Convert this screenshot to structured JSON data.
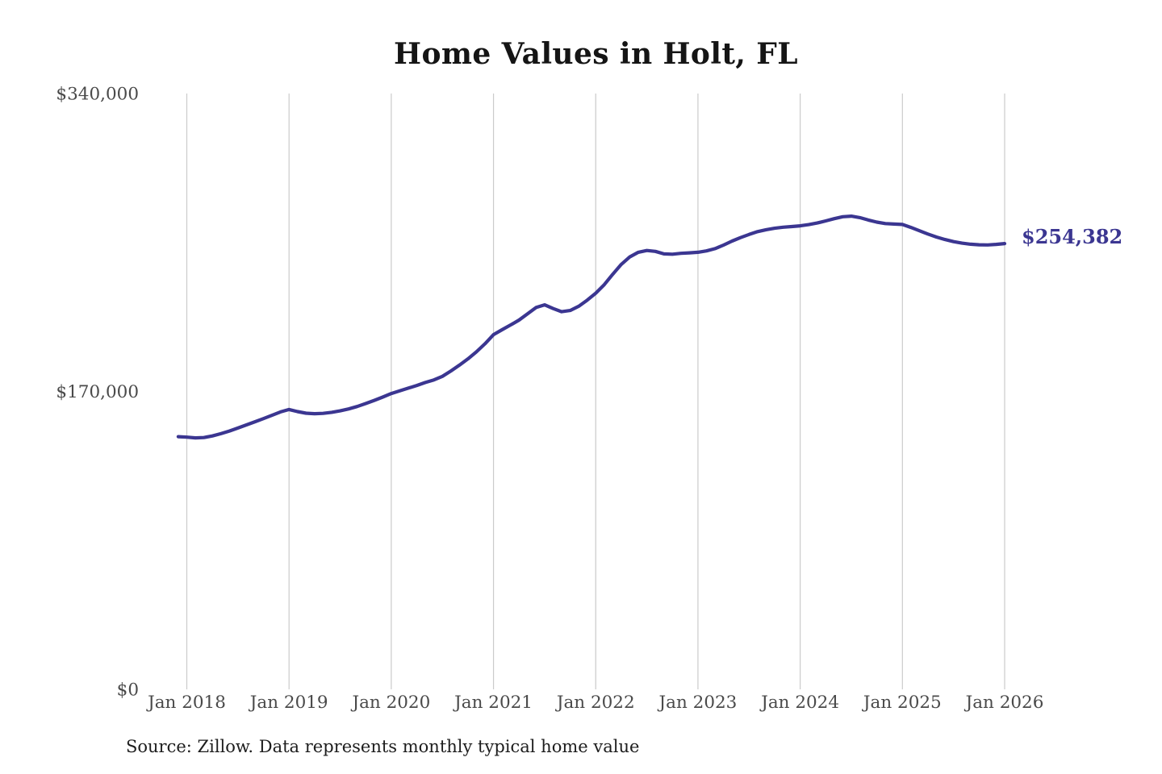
{
  "colors": {
    "line": "#3b3691",
    "grid": "#cbcbcb",
    "axis_text": "#4a4a4a",
    "title_text": "#151515",
    "end_label_text": "#3b3691",
    "background": "#ffffff"
  },
  "chart_data": {
    "type": "line",
    "title": "Home Values in Holt, FL",
    "source_note": "Source: Zillow. Data represents monthly typical home value",
    "last_value_label": "$254,382",
    "xlabel": "",
    "ylabel": "",
    "ylim": [
      0,
      340000
    ],
    "y_ticks": [
      0,
      170000,
      340000
    ],
    "y_tick_labels": [
      "$0",
      "$170,000",
      "$340,000"
    ],
    "x_tick_labels": [
      "Jan 2018",
      "Jan 2019",
      "Jan 2020",
      "Jan 2021",
      "Jan 2022",
      "Jan 2023",
      "Jan 2024",
      "Jan 2025",
      "Jan 2026"
    ],
    "x_interval": "monthly",
    "x_start": "Dec 2017",
    "x_end": "Jan 2026",
    "start_offset_months": -1,
    "months_per_tick": 12,
    "grid": "vertical-only",
    "legend": "none",
    "series": [
      {
        "name": "Typical home value",
        "values": [
          144200,
          143900,
          143500,
          143700,
          144600,
          145900,
          147400,
          149100,
          150900,
          152700,
          154500,
          156400,
          158300,
          159700,
          158500,
          157600,
          157300,
          157500,
          158100,
          158900,
          160000,
          161400,
          163100,
          164900,
          166800,
          168800,
          170300,
          171900,
          173400,
          175100,
          176600,
          178600,
          181700,
          185000,
          188600,
          192600,
          197200,
          202400,
          205200,
          207900,
          210700,
          214300,
          217900,
          219400,
          217300,
          215500,
          216200,
          218600,
          222100,
          226100,
          230900,
          236900,
          242500,
          246800,
          249400,
          250400,
          249900,
          248500,
          248300,
          248800,
          249100,
          249400,
          250200,
          251500,
          253500,
          255800,
          257800,
          259600,
          261200,
          262300,
          263100,
          263700,
          264100,
          264500,
          265200,
          266100,
          267300,
          268600,
          269700,
          270000,
          269200,
          267800,
          266600,
          265800,
          265500,
          265300,
          263600,
          261700,
          259800,
          258100,
          256700,
          255500,
          254600,
          254000,
          253700,
          253600,
          253900,
          254382
        ]
      }
    ]
  }
}
